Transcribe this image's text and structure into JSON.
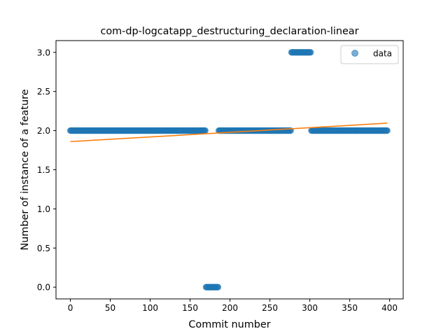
{
  "chart_data": {
    "type": "scatter",
    "title": "com-dp-logcatapp_destructuring_declaration-linear",
    "xlabel": "Commit number",
    "ylabel": "Number of instance of a feature",
    "xlim": [
      -18,
      417
    ],
    "ylim": [
      -0.15,
      3.15
    ],
    "xticks": [
      0,
      50,
      100,
      150,
      200,
      250,
      300,
      350,
      400
    ],
    "xtick_labels": [
      "0",
      "50",
      "100",
      "150",
      "200",
      "250",
      "300",
      "350",
      "400"
    ],
    "yticks": [
      0.0,
      0.5,
      1.0,
      1.5,
      2.0,
      2.5,
      3.0
    ],
    "ytick_labels": [
      "0.0",
      "0.5",
      "1.0",
      "1.5",
      "2.0",
      "2.5",
      "3.0"
    ],
    "grid": false,
    "legend": {
      "placement": "top-right",
      "entries": [
        "data"
      ]
    },
    "series": [
      {
        "name": "data",
        "kind": "scatter",
        "color": "#1f77b4",
        "segments": [
          {
            "x_start": 0,
            "x_end": 169,
            "y": 2
          },
          {
            "x_start": 170,
            "x_end": 185,
            "y": 0
          },
          {
            "x_start": 186,
            "x_end": 276,
            "y": 2
          },
          {
            "x_start": 277,
            "x_end": 301,
            "y": 3
          },
          {
            "x_start": 302,
            "x_end": 397,
            "y": 2
          }
        ]
      },
      {
        "kind": "line",
        "color": "#ff7f0e",
        "x": [
          0,
          397
        ],
        "y": [
          1.86,
          2.095
        ]
      }
    ]
  }
}
